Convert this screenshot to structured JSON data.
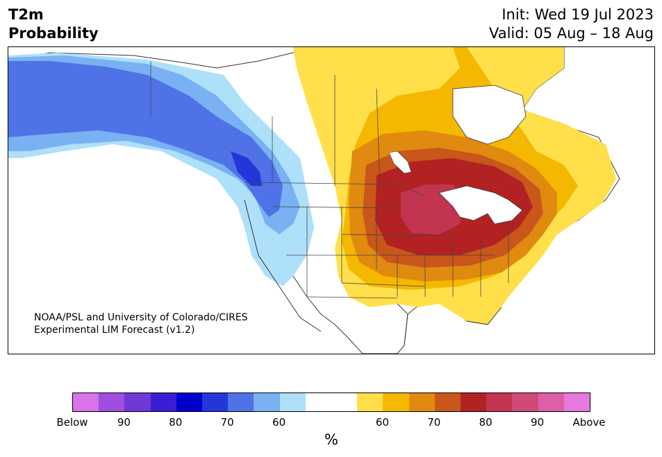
{
  "header": {
    "variable": "T2m",
    "metric": "Probability",
    "init": "Init: Wed 19 Jul 2023",
    "valid": "Valid: 05 Aug – 18 Aug"
  },
  "credit": {
    "line1": "NOAA/PSL and University of Colorado/CIRES",
    "line2": "Experimental LIM Forecast (v1.2)"
  },
  "colorbar": {
    "unit": "%",
    "colors": [
      "#d873e8",
      "#a04de0",
      "#7038d6",
      "#3a1ed6",
      "#0000cc",
      "#2536d9",
      "#4f73e6",
      "#79b1f2",
      "#aee0fa",
      "#ffffff",
      "#ffffff",
      "#ffe04a",
      "#f5b800",
      "#e08a10",
      "#c9561a",
      "#b32222",
      "#c23450",
      "#cf4a78",
      "#dc5fa8",
      "#e678de"
    ],
    "tick_labels": [
      "Below",
      "90",
      "80",
      "70",
      "60",
      "60",
      "70",
      "80",
      "90",
      "Above"
    ]
  },
  "map": {
    "region": "North America",
    "max_anomaly_center": "Great Lakes"
  }
}
